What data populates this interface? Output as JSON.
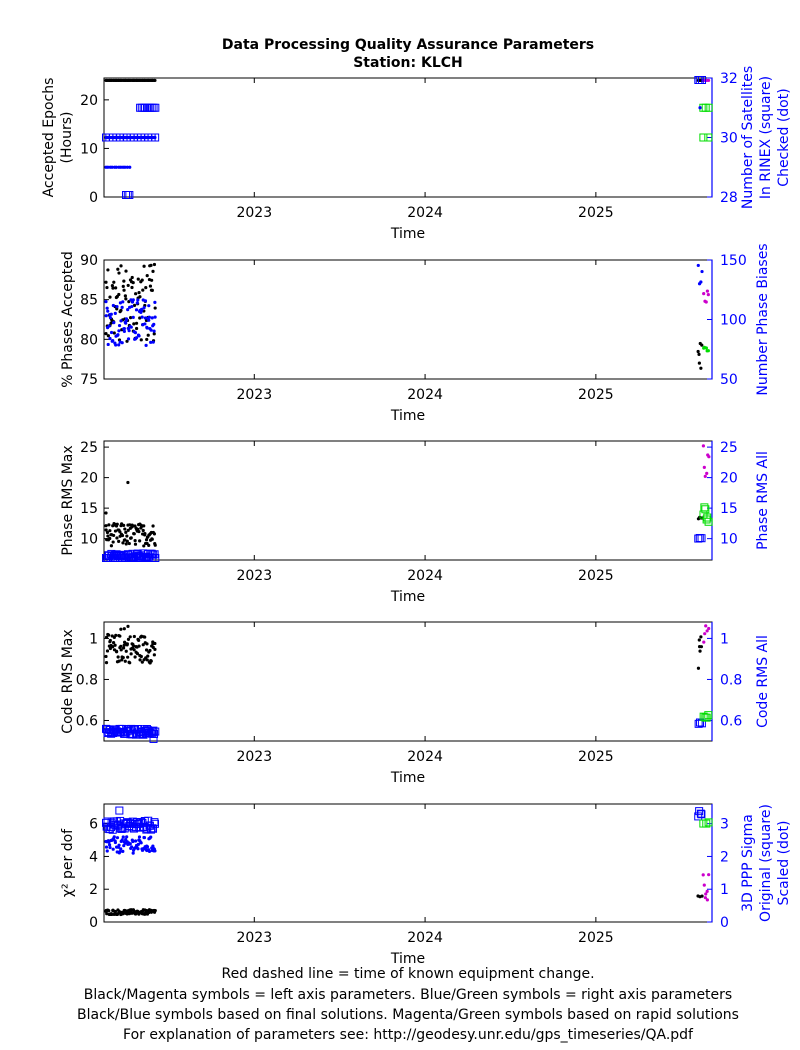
{
  "title": {
    "line1": "Data Processing Quality Assurance Parameters",
    "line2": "Station: KLCH"
  },
  "footer": [
    "Red dashed line = time of known equipment change.",
    "Black/Magenta symbols = left axis parameters. Blue/Green symbols = right axis parameters",
    "Black/Blue symbols based on final solutions.  Magenta/Green symbols based on rapid solutions",
    "For explanation of parameters see: http://geodesy.unr.edu/gps_timeseries/QA.pdf"
  ],
  "colors": {
    "final_left": "#000000",
    "final_right": "#0000ff",
    "rapid_left": "#cc00cc",
    "rapid_right": "#00dd00",
    "right_axis": "#0000ff"
  },
  "chart_data": [
    {
      "type": "scatter",
      "xlabel": "Time",
      "xlim": [
        2022.12,
        2025.68
      ],
      "xticks": [
        2023,
        2024,
        2025
      ],
      "ylabel_left": [
        "Accepted Epochs",
        "(Hours)"
      ],
      "ylim_left": [
        0,
        24.5
      ],
      "yticks_left": [
        0,
        10,
        20
      ],
      "ylabel_right": [
        "Number of Satellites",
        "In RINEX (square)",
        "Checked (dot)"
      ],
      "ylim_right": [
        28,
        32
      ],
      "yticks_right": [
        28,
        30,
        32
      ],
      "series": [
        {
          "axis": "left",
          "source": "final",
          "marker": "dot",
          "x_range": [
            2022.13,
            2022.42
          ],
          "y": [
            24,
            24
          ],
          "n": 50
        },
        {
          "axis": "right",
          "source": "final",
          "marker": "dot",
          "x_range": [
            2022.13,
            2022.42
          ],
          "y": [
            30.0,
            30.0
          ],
          "n": 55
        },
        {
          "axis": "right",
          "source": "final",
          "marker": "dot",
          "x_range": [
            2022.13,
            2022.27
          ],
          "y": [
            29.0,
            29.0
          ],
          "n": 12
        },
        {
          "axis": "right",
          "source": "final",
          "marker": "square",
          "x_range": [
            2022.33,
            2022.42
          ],
          "y": [
            31.0,
            31.0
          ],
          "n": 10
        },
        {
          "axis": "right",
          "source": "final",
          "marker": "square",
          "x_range": [
            2022.13,
            2022.42
          ],
          "y": [
            30.0,
            30.0
          ],
          "n": 15
        },
        {
          "axis": "right",
          "source": "final",
          "marker": "square",
          "x_range": [
            2022.25,
            2022.27
          ],
          "y": [
            28.0,
            28.0
          ],
          "n": 3
        },
        {
          "axis": "left",
          "source": "final",
          "marker": "dot",
          "x_range": [
            2025.6,
            2025.62
          ],
          "y": [
            24,
            24
          ],
          "n": 4
        },
        {
          "axis": "left",
          "source": "rapid",
          "marker": "dot",
          "x_range": [
            2025.63,
            2025.66
          ],
          "y": [
            24,
            24
          ],
          "n": 4
        },
        {
          "axis": "right",
          "source": "final",
          "marker": "square",
          "x_range": [
            2025.6,
            2025.62
          ],
          "y": [
            32.0,
            32.0
          ],
          "n": 3
        },
        {
          "axis": "right",
          "source": "rapid",
          "marker": "square",
          "x_range": [
            2025.63,
            2025.66
          ],
          "y": [
            31.0,
            31.0
          ],
          "n": 3
        },
        {
          "axis": "right",
          "source": "rapid",
          "marker": "square",
          "x_range": [
            2025.63,
            2025.66
          ],
          "y": [
            30.0,
            30.0
          ],
          "n": 2
        },
        {
          "axis": "right",
          "source": "final",
          "marker": "dot",
          "x_range": [
            2025.61,
            2025.62
          ],
          "y": [
            31.0,
            31.0
          ],
          "n": 1
        }
      ]
    },
    {
      "type": "scatter",
      "xlabel": "Time",
      "xlim": [
        2022.12,
        2025.68
      ],
      "xticks": [
        2023,
        2024,
        2025
      ],
      "ylabel_left": [
        "% Phases Accepted"
      ],
      "ylim_left": [
        75,
        90
      ],
      "yticks_left": [
        75,
        80,
        85,
        90
      ],
      "ylabel_right": [
        "Number Phase Biases"
      ],
      "ylim_right": [
        50,
        150
      ],
      "yticks_right": [
        50,
        100,
        150
      ],
      "series": [
        {
          "axis": "left",
          "source": "final",
          "marker": "dot",
          "x_range": [
            2022.13,
            2022.42
          ],
          "y": [
            79.5,
            89.5
          ],
          "n": 90
        },
        {
          "axis": "right",
          "source": "final",
          "marker": "dot",
          "x_range": [
            2022.13,
            2022.42
          ],
          "y": [
            78,
            118
          ],
          "n": 90
        },
        {
          "axis": "left",
          "source": "final",
          "marker": "dot",
          "x_range": [
            2025.6,
            2025.62
          ],
          "y": [
            75.5,
            80.2
          ],
          "n": 6
        },
        {
          "axis": "left",
          "source": "rapid",
          "marker": "dot",
          "x_range": [
            2025.63,
            2025.66
          ],
          "y": [
            84.5,
            86.5
          ],
          "n": 5
        },
        {
          "axis": "right",
          "source": "final",
          "marker": "dot",
          "x_range": [
            2025.6,
            2025.62
          ],
          "y": [
            125,
            148
          ],
          "n": 4
        },
        {
          "axis": "right",
          "source": "rapid",
          "marker": "dot",
          "x_range": [
            2025.63,
            2025.66
          ],
          "y": [
            73,
            77
          ],
          "n": 5
        }
      ]
    },
    {
      "type": "scatter",
      "xlabel": "Time",
      "xlim": [
        2022.12,
        2025.68
      ],
      "xticks": [
        2023,
        2024,
        2025
      ],
      "ylabel_left": [
        "Phase RMS Max"
      ],
      "ylim_left": [
        6.5,
        26
      ],
      "yticks_left": [
        10,
        15,
        20,
        25
      ],
      "ylabel_right": [
        "Phase RMS All"
      ],
      "ylim_right": [
        6.5,
        26
      ],
      "yticks_right": [
        10,
        15,
        20,
        25
      ],
      "series": [
        {
          "axis": "left",
          "source": "final",
          "marker": "dot",
          "x_range": [
            2022.13,
            2022.42
          ],
          "y": [
            8.8,
            12.5
          ],
          "n": 90
        },
        {
          "axis": "left",
          "source": "final",
          "marker": "dot",
          "x_range": [
            2022.26,
            2022.27
          ],
          "y": [
            19.2,
            19.2
          ],
          "n": 1
        },
        {
          "axis": "left",
          "source": "final",
          "marker": "dot",
          "x_range": [
            2022.13,
            2022.14
          ],
          "y": [
            14.2,
            14.2
          ],
          "n": 1
        },
        {
          "axis": "right",
          "source": "final",
          "marker": "square",
          "x_range": [
            2022.13,
            2022.42
          ],
          "y": [
            6.6,
            7.6
          ],
          "n": 55
        },
        {
          "axis": "left",
          "source": "final",
          "marker": "dot",
          "x_range": [
            2025.6,
            2025.62
          ],
          "y": [
            12.8,
            13.8
          ],
          "n": 4
        },
        {
          "axis": "left",
          "source": "rapid",
          "marker": "dot",
          "x_range": [
            2025.63,
            2025.66
          ],
          "y": [
            20,
            25.6
          ],
          "n": 6
        },
        {
          "axis": "right",
          "source": "final",
          "marker": "square",
          "x_range": [
            2025.6,
            2025.62
          ],
          "y": [
            10,
            10.6
          ],
          "n": 3
        },
        {
          "axis": "right",
          "source": "rapid",
          "marker": "square",
          "x_range": [
            2025.63,
            2025.66
          ],
          "y": [
            12.5,
            16
          ],
          "n": 6
        }
      ]
    },
    {
      "type": "scatter",
      "xlabel": "Time",
      "xlim": [
        2022.12,
        2025.68
      ],
      "xticks": [
        2023,
        2024,
        2025
      ],
      "ylabel_left": [
        "Code RMS Max"
      ],
      "ylim_left": [
        0.5,
        1.08
      ],
      "yticks_left": [
        0.6,
        0.8,
        1
      ],
      "ylabel_right": [
        "Code RMS All"
      ],
      "ylim_right": [
        0.5,
        1.08
      ],
      "yticks_right": [
        0.6,
        0.8,
        1
      ],
      "series": [
        {
          "axis": "left",
          "source": "final",
          "marker": "dot",
          "x_range": [
            2022.13,
            2022.42
          ],
          "y": [
            0.88,
            1.02
          ],
          "n": 90
        },
        {
          "axis": "left",
          "source": "final",
          "marker": "dot",
          "x_range": [
            2022.22,
            2022.26
          ],
          "y": [
            1.04,
            1.06
          ],
          "n": 3
        },
        {
          "axis": "right",
          "source": "final",
          "marker": "square",
          "x_range": [
            2022.13,
            2022.42
          ],
          "y": [
            0.53,
            0.56
          ],
          "n": 55
        },
        {
          "axis": "right",
          "source": "final",
          "marker": "square",
          "x_range": [
            2022.41,
            2022.42
          ],
          "y": [
            0.51,
            0.51
          ],
          "n": 1
        },
        {
          "axis": "left",
          "source": "final",
          "marker": "dot",
          "x_range": [
            2025.6,
            2025.62
          ],
          "y": [
            0.84,
            1.03
          ],
          "n": 6
        },
        {
          "axis": "left",
          "source": "rapid",
          "marker": "dot",
          "x_range": [
            2025.63,
            2025.66
          ],
          "y": [
            0.95,
            1.07
          ],
          "n": 5
        },
        {
          "axis": "right",
          "source": "final",
          "marker": "square",
          "x_range": [
            2025.6,
            2025.62
          ],
          "y": [
            0.58,
            0.6
          ],
          "n": 3
        },
        {
          "axis": "right",
          "source": "rapid",
          "marker": "square",
          "x_range": [
            2025.63,
            2025.66
          ],
          "y": [
            0.6,
            0.63
          ],
          "n": 4
        }
      ]
    },
    {
      "type": "scatter",
      "xlabel": "Time",
      "xlim": [
        2022.12,
        2025.68
      ],
      "xticks": [
        2023,
        2024,
        2025
      ],
      "ylabel_left": [
        "χ² per dof"
      ],
      "ylim_left": [
        0,
        7.2
      ],
      "yticks_left": [
        0,
        2,
        4,
        6
      ],
      "ylabel_right": [
        "3D PPP Sigma",
        "Original (square)",
        "Scaled (dot)"
      ],
      "ylim_right": [
        0,
        3.6
      ],
      "yticks_right": [
        0,
        1,
        2,
        3
      ],
      "series": [
        {
          "axis": "left",
          "source": "final",
          "marker": "dot",
          "x_range": [
            2022.13,
            2022.42
          ],
          "y": [
            0.45,
            0.75
          ],
          "n": 80
        },
        {
          "axis": "right",
          "source": "final",
          "marker": "dot",
          "x_range": [
            2022.13,
            2022.42
          ],
          "y": [
            2.1,
            2.6
          ],
          "n": 80
        },
        {
          "axis": "right",
          "source": "final",
          "marker": "square",
          "x_range": [
            2022.13,
            2022.42
          ],
          "y": [
            2.8,
            3.1
          ],
          "n": 50
        },
        {
          "axis": "right",
          "source": "final",
          "marker": "square",
          "x_range": [
            2022.21,
            2022.22
          ],
          "y": [
            3.4,
            3.4
          ],
          "n": 1
        },
        {
          "axis": "left",
          "source": "final",
          "marker": "dot",
          "x_range": [
            2025.6,
            2025.62
          ],
          "y": [
            1.5,
            1.6
          ],
          "n": 3
        },
        {
          "axis": "left",
          "source": "rapid",
          "marker": "dot",
          "x_range": [
            2025.63,
            2025.66
          ],
          "y": [
            1.0,
            3.6
          ],
          "n": 7
        },
        {
          "axis": "right",
          "source": "final",
          "marker": "square",
          "x_range": [
            2025.6,
            2025.62
          ],
          "y": [
            3.2,
            3.4
          ],
          "n": 4
        },
        {
          "axis": "right",
          "source": "rapid",
          "marker": "square",
          "x_range": [
            2025.63,
            2025.66
          ],
          "y": [
            3.0,
            3.1
          ],
          "n": 3
        }
      ]
    }
  ]
}
